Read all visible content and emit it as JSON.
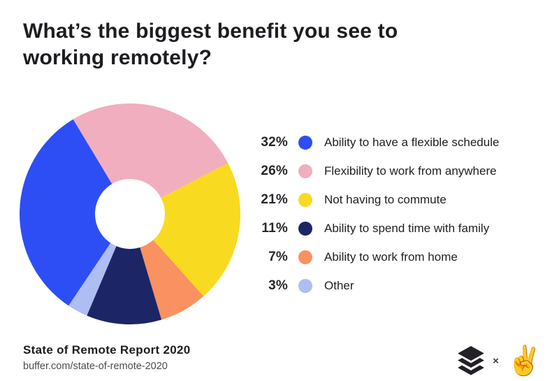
{
  "header": {
    "title": "What’s the biggest benefit you see to\nworking remotely?"
  },
  "chart_data": {
    "type": "pie",
    "donut": true,
    "title": "What’s the biggest benefit you see to working remotely?",
    "legend_position": "right",
    "start_angle_deg": -31,
    "draw_order": [
      1,
      2,
      4,
      3,
      5,
      0
    ],
    "geometry": {
      "outer_radius": 158,
      "inner_radius": 50
    },
    "segments": [
      {
        "label": "Ability to have a flexible schedule",
        "value": 32,
        "pct": "32%",
        "color": "#2d4ef5"
      },
      {
        "label": "Flexibility to work from anywhere",
        "value": 26,
        "pct": "26%",
        "color": "#f1aebe"
      },
      {
        "label": "Not having to commute",
        "value": 21,
        "pct": "21%",
        "color": "#f8da21"
      },
      {
        "label": "Ability to spend time with family",
        "value": 11,
        "pct": "11%",
        "color": "#1c2566"
      },
      {
        "label": "Ability to work from home",
        "value": 7,
        "pct": "7%",
        "color": "#fa9160"
      },
      {
        "label": "Other",
        "value": 3,
        "pct": "3%",
        "color": "#aebdf2"
      }
    ]
  },
  "footer": {
    "report_title": "State of Remote Report 2020",
    "source_url": "buffer.com/state-of-remote-2020",
    "separator": "×",
    "icons": {
      "buffer_logo": "buffer-stacked-layers",
      "peace_hand_glyph": "✌"
    }
  }
}
